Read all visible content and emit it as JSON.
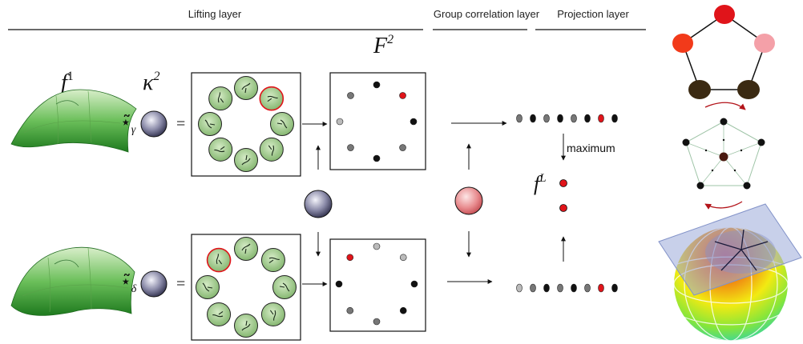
{
  "headers": {
    "lifting": "Lifting layer",
    "group_corr": "Group correlation layer",
    "projection": "Projection layer"
  },
  "math": {
    "f1": "f",
    "f1_sup": "1",
    "kappa": "κ",
    "kappa_sup": "2",
    "F2": "F",
    "F2_sup": "2",
    "fL": "f",
    "fL_sup": "L",
    "star_gamma": "⋆̃",
    "sub_gamma": "γ",
    "star_delta": "⋆̃",
    "sub_delta": "δ",
    "equals": "="
  },
  "labels": {
    "maximum": "maximum"
  },
  "colors": {
    "red": "#e0141a",
    "dark": "#111111",
    "gray": "#777777",
    "light_gray": "#bbbbbb",
    "green": "#7fb36a",
    "kernel": "#3a3a5c",
    "pink_node": "#f4a0a8",
    "brown_node": "#3b2a12"
  }
}
